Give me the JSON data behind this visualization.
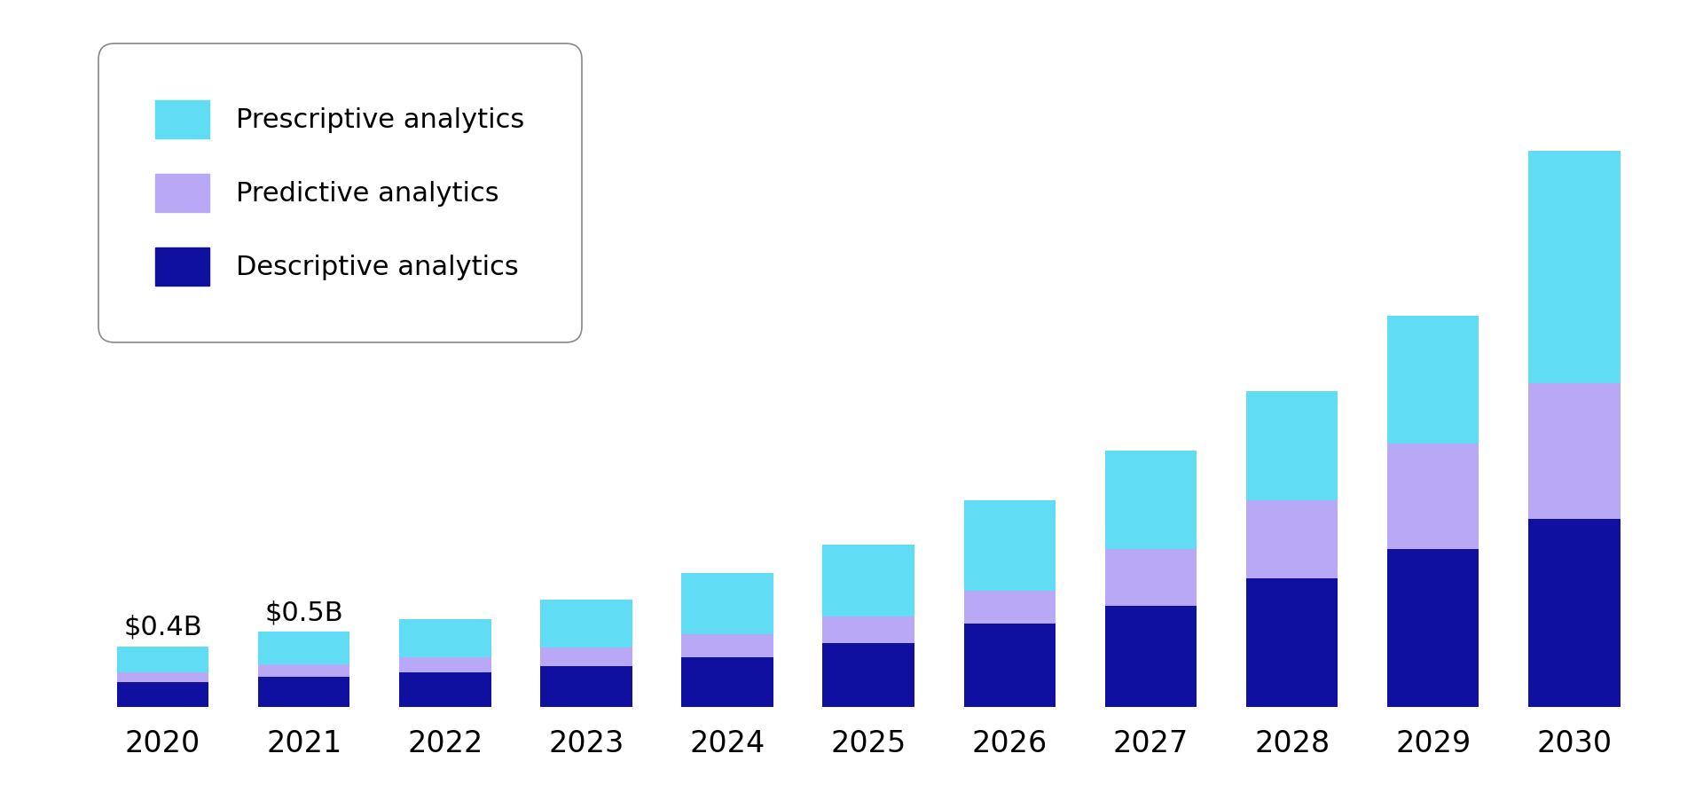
{
  "years": [
    "2020",
    "2021",
    "2022",
    "2023",
    "2024",
    "2025",
    "2026",
    "2027",
    "2028",
    "2029",
    "2030"
  ],
  "descriptive": [
    0.16,
    0.2,
    0.23,
    0.27,
    0.33,
    0.42,
    0.55,
    0.67,
    0.85,
    1.05,
    1.25
  ],
  "predictive": [
    0.07,
    0.08,
    0.1,
    0.12,
    0.15,
    0.18,
    0.22,
    0.38,
    0.52,
    0.7,
    0.9
  ],
  "prescriptive": [
    0.17,
    0.22,
    0.25,
    0.32,
    0.41,
    0.48,
    0.6,
    0.65,
    0.73,
    0.85,
    1.55
  ],
  "color_descriptive": "#1010a0",
  "color_predictive": "#b8a8f5",
  "color_prescriptive": "#60ddf5",
  "annotations": [
    {
      "year_idx": 0,
      "text": "$0.4B"
    },
    {
      "year_idx": 1,
      "text": "$0.5B"
    }
  ],
  "legend_labels": [
    "Prescriptive analytics",
    "Predictive analytics",
    "Descriptive analytics"
  ],
  "legend_colors": [
    "#60ddf5",
    "#b8a8f5",
    "#1010a0"
  ],
  "background_color": "#ffffff",
  "bar_width": 0.65,
  "annotation_fontsize": 22,
  "legend_fontsize": 22,
  "tick_fontsize": 24
}
